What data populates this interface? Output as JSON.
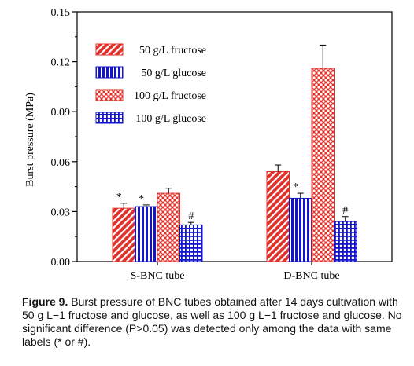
{
  "chart_data": {
    "type": "bar",
    "ylabel": "Burst pressure (MPa)",
    "ylim": [
      0,
      0.15
    ],
    "yticks": [
      "0.00",
      "0.03",
      "0.06",
      "0.09",
      "0.12",
      "0.15"
    ],
    "categories": [
      "S-BNC tube",
      "D-BNC tube"
    ],
    "series": [
      {
        "name": "50 g/L fructose",
        "values": [
          0.032,
          0.054
        ],
        "errors": [
          0.003,
          0.004
        ],
        "labels": [
          "*",
          ""
        ],
        "color": "#e0302a",
        "pattern": "diagonal"
      },
      {
        "name": "50 g/L glucose",
        "values": [
          0.033,
          0.038
        ],
        "errors": [
          0.001,
          0.003
        ],
        "labels": [
          "*",
          "*"
        ],
        "color": "#1414cc",
        "pattern": "vertical"
      },
      {
        "name": "100 g/L fructose",
        "values": [
          0.041,
          0.116
        ],
        "errors": [
          0.003,
          0.014
        ],
        "labels": [
          "",
          ""
        ],
        "color": "#e0302a",
        "pattern": "crosshatch"
      },
      {
        "name": "100 g/L glucose",
        "values": [
          0.022,
          0.024
        ],
        "errors": [
          0.0015,
          0.003
        ],
        "labels": [
          "#",
          "#"
        ],
        "color": "#1414cc",
        "pattern": "grid"
      }
    ],
    "legend": "top-left"
  },
  "caption": {
    "label": "Figure 9.",
    "text": "Burst pressure of BNC tubes obtained after 14 days cultivation with 50 g L−1 fructose and glucose, as well as 100 g L−1 fructose and glucose. No significant difference (P>0.05) was detected only among the data with same labels (* or #)."
  }
}
